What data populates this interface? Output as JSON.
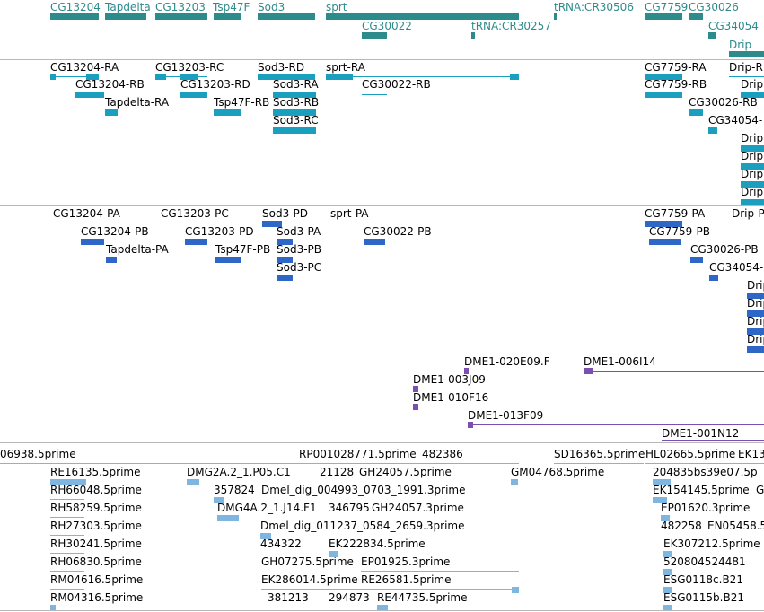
{
  "tracks": {
    "genes": {
      "color": "#2e8b8b",
      "labels": [
        "CG13204",
        "Tapdelta",
        "CG13203",
        "Tsp47F",
        "Sod3",
        "sprt",
        "tRNA:CR30506",
        "CG7759",
        "CG30026",
        "CG30022",
        "tRNA:CR30257",
        "CG34054",
        "Drip"
      ]
    },
    "transcripts": {
      "color": "#1a9fbf",
      "labels": [
        "CG13204-RA",
        "CG13204-RB",
        "Tapdelta-RA",
        "CG13203-RC",
        "CG13203-RD",
        "Tsp47F-RB",
        "Sod3-RD",
        "Sod3-RA",
        "Sod3-RB",
        "Sod3-RC",
        "sprt-RA",
        "CG30022-RB",
        "CG7759-RA",
        "CG7759-RB",
        "CG30026-RB",
        "CG34054-",
        "Drip-R",
        "Drip",
        "Drip",
        "Drip",
        "Drip",
        "Drip"
      ]
    },
    "proteins": {
      "color": "#2f67c6",
      "labels": [
        "CG13204-PA",
        "CG13204-PB",
        "Tapdelta-PA",
        "CG13203-PC",
        "CG13203-PD",
        "Tsp47F-PB",
        "Sod3-PD",
        "Sod3-PA",
        "Sod3-PB",
        "Sod3-PC",
        "sprt-PA",
        "CG30022-PB",
        "CG7759-PA",
        "CG7759-PB",
        "CG30026-PB",
        "CG34054-",
        "Drip-P",
        "Drip",
        "Drip",
        "Drip",
        "Drip"
      ]
    },
    "clones": {
      "color": "#7a4fb0",
      "labels": [
        "DME1-020E09.F",
        "DME1-006I14",
        "DME1-003J09",
        "DME1-010F16",
        "DME1-013F09",
        "DME1-001N12"
      ]
    },
    "ests": {
      "color": "#7fb6e0",
      "labels": [
        "06938.5prime",
        "RP001028771.5prime",
        "482386",
        "SD16365.5prime",
        "HL02665.5prime",
        "EK13",
        "RE16135.5prime",
        "DMG2A.2_1.P05.C1",
        "21128",
        "GH24057.5prime",
        "GM04768.5prime",
        "204835bs39e07.5p",
        "RH66048.5prime",
        "357824",
        "Dmel_dig_004993_0703_1991.3prime",
        "EK154145.5prime",
        "G",
        "RH58259.5prime",
        "DMG4A.2_1.J14.F1",
        "346795",
        "GH24057.3prime",
        "EP01620.3prime",
        "RH27303.5prime",
        "Dmel_dig_011237_0584_2659.3prime",
        "482258",
        "EN05458.5",
        "RH30241.5prime",
        "434322",
        "EK222834.5prime",
        "EK307212.5prime",
        "RH06830.5prime",
        "GH07275.5prime",
        "EP01925.3prime",
        "520804524481",
        "RM04616.5prime",
        "EK286014.5prime",
        "RE26581.5prime",
        "ESG0118c.B21",
        "RM04316.5prime",
        "381213",
        "294873",
        "RE44735.5prime",
        "ESG0115b.B21"
      ]
    }
  }
}
